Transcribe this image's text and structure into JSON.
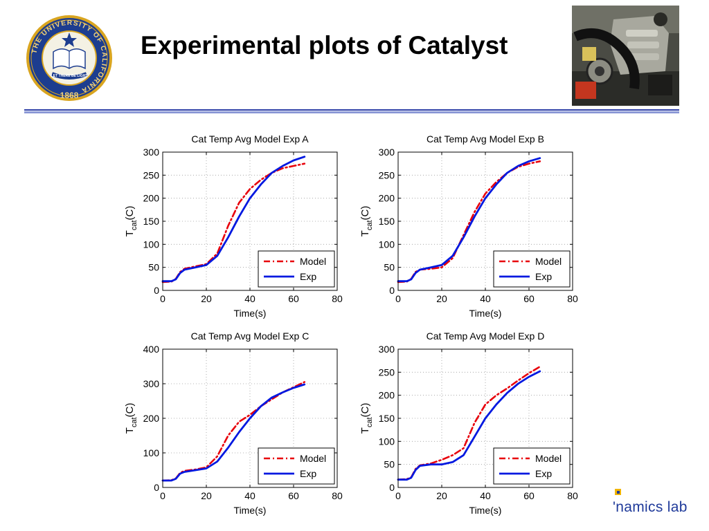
{
  "slide": {
    "title": "Experimental plots of Catalyst",
    "lab_text": "'namics lab",
    "accent_color": "#2c3ea6"
  },
  "seal": {
    "icon": "university-of-california-seal",
    "ring_text": "THE UNIVERSITY OF CALIFORNIA",
    "motto": "LET THERE BE LIGHT",
    "year": "1868",
    "gold_color": "#d9a520",
    "blue_color": "#1d3d8f"
  },
  "photo": {
    "icon": "engine-photo"
  },
  "colors": {
    "model": "#e8000b",
    "exp": "#0018e0"
  },
  "chart_data": [
    {
      "type": "line",
      "title": "Cat Temp Avg Model Exp A",
      "xlabel": "Time(s)",
      "ylabel_main": "T",
      "ylabel_sub": "cat",
      "ylabel_unit": "(C)",
      "xlim": [
        0,
        80
      ],
      "ylim": [
        0,
        300
      ],
      "xticks": [
        0,
        20,
        40,
        60,
        80
      ],
      "yticks": [
        0,
        50,
        100,
        150,
        200,
        250,
        300
      ],
      "grid": true,
      "legend_position": "bottom-right",
      "series": [
        {
          "name": "Model",
          "style": "dash-dot",
          "x": [
            0,
            4,
            6,
            8,
            10,
            15,
            20,
            25,
            30,
            35,
            40,
            45,
            50,
            55,
            60,
            65
          ],
          "y": [
            18,
            19,
            25,
            40,
            47,
            52,
            57,
            80,
            140,
            190,
            220,
            240,
            255,
            265,
            270,
            275
          ]
        },
        {
          "name": "Exp",
          "style": "solid",
          "x": [
            0,
            4,
            6,
            8,
            10,
            15,
            20,
            25,
            30,
            35,
            40,
            45,
            50,
            55,
            60,
            65
          ],
          "y": [
            20,
            20,
            24,
            38,
            45,
            50,
            55,
            75,
            115,
            160,
            200,
            230,
            255,
            270,
            282,
            290
          ]
        }
      ]
    },
    {
      "type": "line",
      "title": "Cat Temp Avg Model Exp B",
      "xlabel": "Time(s)",
      "ylabel_main": "T",
      "ylabel_sub": "cat",
      "ylabel_unit": "(C)",
      "xlim": [
        0,
        80
      ],
      "ylim": [
        0,
        300
      ],
      "xticks": [
        0,
        20,
        40,
        60,
        80
      ],
      "yticks": [
        0,
        50,
        100,
        150,
        200,
        250,
        300
      ],
      "grid": true,
      "legend_position": "bottom-right",
      "series": [
        {
          "name": "Model",
          "style": "dash-dot",
          "x": [
            0,
            4,
            6,
            8,
            10,
            15,
            20,
            25,
            30,
            35,
            40,
            45,
            50,
            55,
            60,
            65
          ],
          "y": [
            18,
            19,
            25,
            40,
            45,
            47,
            50,
            70,
            120,
            170,
            210,
            235,
            255,
            268,
            275,
            280
          ]
        },
        {
          "name": "Exp",
          "style": "solid",
          "x": [
            0,
            4,
            6,
            8,
            10,
            15,
            20,
            25,
            30,
            35,
            40,
            45,
            50,
            55,
            60,
            65
          ],
          "y": [
            20,
            20,
            24,
            38,
            45,
            50,
            55,
            75,
            115,
            160,
            200,
            230,
            255,
            270,
            280,
            287
          ]
        }
      ]
    },
    {
      "type": "line",
      "title": "Cat Temp Avg Model Exp C",
      "xlabel": "Time(s)",
      "ylabel_main": "T",
      "ylabel_sub": "cat",
      "ylabel_unit": "(C)",
      "xlim": [
        0,
        80
      ],
      "ylim": [
        0,
        400
      ],
      "xticks": [
        0,
        20,
        40,
        60,
        80
      ],
      "yticks": [
        0,
        100,
        200,
        300,
        400
      ],
      "grid": true,
      "legend_position": "bottom-right",
      "series": [
        {
          "name": "Model",
          "style": "dash-dot",
          "x": [
            0,
            4,
            6,
            8,
            10,
            15,
            20,
            25,
            30,
            35,
            40,
            45,
            50,
            55,
            60,
            65
          ],
          "y": [
            20,
            21,
            26,
            42,
            48,
            52,
            58,
            90,
            150,
            190,
            210,
            235,
            255,
            275,
            290,
            305
          ]
        },
        {
          "name": "Exp",
          "style": "solid",
          "x": [
            0,
            4,
            6,
            8,
            10,
            15,
            20,
            25,
            30,
            35,
            40,
            45,
            50,
            55,
            60,
            65
          ],
          "y": [
            20,
            20,
            25,
            40,
            45,
            50,
            55,
            75,
            115,
            160,
            200,
            235,
            260,
            275,
            288,
            298
          ]
        }
      ]
    },
    {
      "type": "line",
      "title": "Cat Temp Avg Model Exp D",
      "xlabel": "Time(s)",
      "ylabel_main": "T",
      "ylabel_sub": "cat",
      "ylabel_unit": "(C)",
      "xlim": [
        0,
        80
      ],
      "ylim": [
        0,
        300
      ],
      "xticks": [
        0,
        20,
        40,
        60,
        80
      ],
      "yticks": [
        0,
        50,
        100,
        150,
        200,
        250,
        300
      ],
      "grid": true,
      "legend_position": "bottom-right",
      "series": [
        {
          "name": "Model",
          "style": "dash-dot",
          "x": [
            0,
            4,
            6,
            8,
            10,
            15,
            20,
            25,
            30,
            35,
            40,
            45,
            50,
            55,
            60,
            65
          ],
          "y": [
            17,
            18,
            22,
            40,
            48,
            52,
            60,
            70,
            85,
            140,
            180,
            200,
            215,
            232,
            248,
            262
          ]
        },
        {
          "name": "Exp",
          "style": "solid",
          "x": [
            0,
            4,
            6,
            8,
            10,
            15,
            20,
            25,
            30,
            35,
            40,
            45,
            50,
            55,
            60,
            65
          ],
          "y": [
            17,
            17,
            21,
            38,
            47,
            50,
            50,
            55,
            70,
            110,
            150,
            180,
            205,
            225,
            240,
            252
          ]
        }
      ]
    }
  ]
}
